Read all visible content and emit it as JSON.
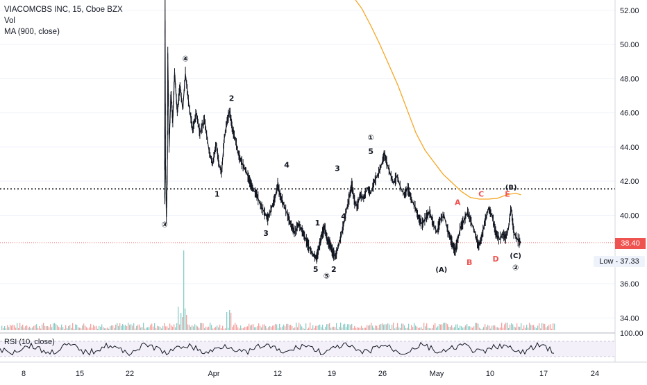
{
  "legend": {
    "symbol": "VIACOMCBS INC, 15, Cboe BZX",
    "vol": "Vol",
    "ma": "MA (900, close)"
  },
  "rsi_label": "RSI (10, close)",
  "last_price_tag": "38.40",
  "low_tag": "Low - 37.33",
  "colors": {
    "price": "#131722",
    "ma": "#f5a623",
    "vol_up": "#26a69a",
    "vol_down": "#ef5350",
    "last_price": "#ef5350",
    "axis_text": "#131722",
    "grid": "#f0f3fa"
  },
  "chart_data": {
    "type": "line",
    "title": "VIACOMCBS INC, 15, Cboe BZX",
    "y_axis": {
      "ticks": [
        "52.00",
        "50.00",
        "48.00",
        "46.00",
        "44.00",
        "42.00",
        "40.00",
        "36.00",
        "34.00"
      ],
      "range": [
        33.2,
        52.6
      ]
    },
    "rsi_axis": {
      "ticks": [
        "100.00"
      ]
    },
    "x_axis": {
      "ticks": [
        "8",
        "15",
        "22",
        "Apr",
        "12",
        "19",
        "26",
        "May",
        "10",
        "17",
        "24"
      ],
      "range": [
        0,
        68
      ]
    },
    "horizontal_level": 41.55,
    "last_price": 38.4,
    "low": 37.33,
    "price_series": {
      "name": "VIACOMCBS INC",
      "points": [
        [
          18.2,
          41.0
        ],
        [
          18.25,
          52.6
        ],
        [
          18.3,
          43.0
        ],
        [
          18.4,
          39.9
        ],
        [
          18.5,
          42.5
        ],
        [
          18.55,
          49.5
        ],
        [
          18.7,
          44.0
        ],
        [
          18.9,
          47.2
        ],
        [
          19.1,
          45.5
        ],
        [
          19.3,
          48.4
        ],
        [
          19.6,
          46.0
        ],
        [
          19.9,
          47.6
        ],
        [
          20.2,
          46.2
        ],
        [
          20.5,
          48.3
        ],
        [
          20.9,
          46.4
        ],
        [
          21.3,
          45.0
        ],
        [
          21.7,
          46.0
        ],
        [
          22.1,
          44.8
        ],
        [
          22.6,
          45.6
        ],
        [
          23.1,
          43.8
        ],
        [
          23.5,
          43.0
        ],
        [
          23.9,
          44.2
        ],
        [
          24.2,
          43.0
        ],
        [
          24.5,
          42.5
        ],
        [
          24.8,
          44.5
        ],
        [
          25.1,
          45.5
        ],
        [
          25.4,
          46.1
        ],
        [
          25.7,
          45.0
        ],
        [
          26.0,
          44.5
        ],
        [
          26.4,
          43.5
        ],
        [
          26.8,
          43.0
        ],
        [
          27.2,
          42.6
        ],
        [
          27.6,
          42.0
        ],
        [
          28.0,
          41.5
        ],
        [
          28.4,
          41.2
        ],
        [
          28.8,
          40.6
        ],
        [
          29.2,
          40.2
        ],
        [
          29.6,
          39.8
        ],
        [
          30.0,
          40.4
        ],
        [
          30.4,
          41.0
        ],
        [
          30.7,
          41.8
        ],
        [
          31.0,
          41.1
        ],
        [
          31.4,
          40.6
        ],
        [
          31.8,
          40.0
        ],
        [
          32.2,
          39.4
        ],
        [
          32.6,
          39.0
        ],
        [
          33.0,
          39.5
        ],
        [
          33.4,
          39.1
        ],
        [
          33.8,
          38.6
        ],
        [
          34.2,
          38.1
        ],
        [
          34.6,
          37.7
        ],
        [
          35.0,
          37.5
        ],
        [
          35.3,
          38.2
        ],
        [
          35.6,
          38.9
        ],
        [
          35.9,
          39.3
        ],
        [
          36.2,
          38.5
        ],
        [
          36.5,
          38.3
        ],
        [
          36.8,
          37.8
        ],
        [
          37.1,
          37.6
        ],
        [
          37.4,
          38.2
        ],
        [
          37.7,
          38.8
        ],
        [
          38.0,
          39.5
        ],
        [
          38.3,
          40.3
        ],
        [
          38.6,
          41.0
        ],
        [
          38.9,
          41.8
        ],
        [
          39.2,
          40.8
        ],
        [
          39.5,
          40.5
        ],
        [
          39.8,
          41.2
        ],
        [
          40.2,
          41.0
        ],
        [
          40.6,
          41.6
        ],
        [
          41.0,
          41.3
        ],
        [
          41.4,
          42.0
        ],
        [
          41.8,
          42.4
        ],
        [
          42.2,
          43.0
        ],
        [
          42.5,
          43.6
        ],
        [
          42.8,
          43.0
        ],
        [
          43.1,
          42.5
        ],
        [
          43.5,
          41.9
        ],
        [
          43.9,
          42.3
        ],
        [
          44.3,
          41.6
        ],
        [
          44.7,
          41.2
        ],
        [
          45.1,
          41.6
        ],
        [
          45.5,
          40.9
        ],
        [
          45.9,
          40.5
        ],
        [
          46.3,
          39.8
        ],
        [
          46.7,
          39.5
        ],
        [
          47.1,
          39.9
        ],
        [
          47.5,
          40.2
        ],
        [
          47.9,
          39.5
        ],
        [
          48.3,
          39.0
        ],
        [
          48.7,
          39.8
        ],
        [
          49.1,
          40.0
        ],
        [
          49.5,
          39.1
        ],
        [
          49.9,
          38.5
        ],
        [
          50.3,
          37.9
        ],
        [
          50.6,
          38.5
        ],
        [
          50.9,
          39.3
        ],
        [
          51.3,
          39.7
        ],
        [
          51.7,
          40.2
        ],
        [
          52.1,
          39.6
        ],
        [
          52.5,
          39.0
        ],
        [
          52.9,
          38.2
        ],
        [
          53.2,
          38.6
        ],
        [
          53.6,
          39.6
        ],
        [
          54.0,
          40.4
        ],
        [
          54.4,
          40.0
        ],
        [
          54.8,
          39.0
        ],
        [
          55.2,
          38.6
        ],
        [
          55.6,
          38.9
        ],
        [
          55.9,
          38.7
        ],
        [
          56.2,
          39.2
        ],
        [
          56.5,
          40.5
        ],
        [
          56.8,
          39.0
        ],
        [
          57.2,
          38.6
        ],
        [
          57.6,
          38.4
        ]
      ]
    },
    "ma_series": {
      "name": "MA (900, close)",
      "points": [
        [
          39.3,
          52.6
        ],
        [
          40.0,
          52.1
        ],
        [
          41.0,
          51.1
        ],
        [
          42.0,
          50.0
        ],
        [
          43.0,
          48.8
        ],
        [
          44.0,
          47.6
        ],
        [
          45.0,
          46.2
        ],
        [
          46.0,
          44.8
        ],
        [
          47.0,
          43.8
        ],
        [
          48.0,
          43.1
        ],
        [
          49.0,
          42.4
        ],
        [
          50.0,
          41.9
        ],
        [
          51.0,
          41.4
        ],
        [
          52.0,
          41.05
        ],
        [
          53.0,
          40.95
        ],
        [
          54.0,
          40.95
        ],
        [
          55.0,
          41.0
        ],
        [
          56.0,
          41.2
        ],
        [
          57.0,
          41.3
        ],
        [
          57.6,
          41.2
        ]
      ]
    },
    "annotations": [
      {
        "text": "③",
        "x": 18.2,
        "y": 39.3
      },
      {
        "text": "④",
        "x": 20.5,
        "y": 49.0
      },
      {
        "text": "2",
        "x": 25.6,
        "y": 46.7
      },
      {
        "text": "1",
        "x": 24.0,
        "y": 41.1
      },
      {
        "text": "4",
        "x": 31.7,
        "y": 42.8
      },
      {
        "text": "3",
        "x": 29.4,
        "y": 38.8
      },
      {
        "text": "1",
        "x": 35.1,
        "y": 39.4
      },
      {
        "text": "5",
        "x": 34.9,
        "y": 36.7
      },
      {
        "text": "⑤",
        "x": 36.1,
        "y": 36.3
      },
      {
        "text": "2",
        "x": 36.9,
        "y": 36.7
      },
      {
        "text": "3",
        "x": 37.3,
        "y": 42.6
      },
      {
        "text": "4",
        "x": 38.0,
        "y": 39.8
      },
      {
        "text": "5",
        "x": 41.0,
        "y": 43.6
      },
      {
        "text": "①",
        "x": 41.0,
        "y": 44.4
      },
      {
        "text": "(A)",
        "x": 48.8,
        "y": 36.7
      },
      {
        "text": "A",
        "x": 50.6,
        "y": 40.6
      },
      {
        "text": "B",
        "x": 51.9,
        "y": 37.1
      },
      {
        "text": "C",
        "x": 53.2,
        "y": 41.1
      },
      {
        "text": "D",
        "x": 54.8,
        "y": 37.3
      },
      {
        "text": "E",
        "x": 56.1,
        "y": 41.1
      },
      {
        "text": "(B)",
        "x": 56.5,
        "y": 41.5
      },
      {
        "text": "(C)",
        "x": 57.0,
        "y": 37.5
      },
      {
        "text": "②",
        "x": 57.0,
        "y": 36.8
      }
    ],
    "annotation_colors": {
      "A": "#ef5350",
      "B": "#ef5350",
      "C": "#ef5350",
      "D": "#ef5350",
      "E": "#ef5350"
    }
  }
}
